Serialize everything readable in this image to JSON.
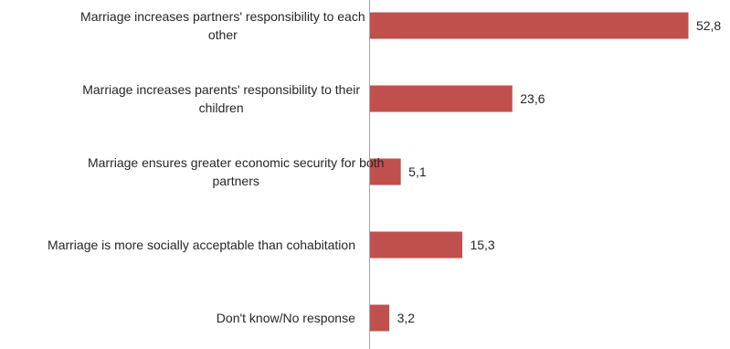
{
  "chart_data": {
    "type": "bar",
    "orientation": "horizontal",
    "categories": [
      "Marriage increases partners' responsibility to each other",
      "Marriage increases parents' responsibility to their children",
      "Marriage ensures greater economic security for both partners",
      "Marriage is more socially acceptable than cohabitation",
      "Don't know/No response"
    ],
    "category_label_lines": [
      [
        "Marriage increases partners' responsibility to each",
        "other"
      ],
      [
        "Marriage increases parents' responsibility to their",
        "children"
      ],
      [
        "Marriage ensures greater economic security for both",
        "partners"
      ],
      [
        "Marriage is more socially acceptable than cohabitation"
      ],
      [
        "Don't know/No response"
      ]
    ],
    "values": [
      52.8,
      23.6,
      5.1,
      15.3,
      3.2
    ],
    "value_labels": [
      "52,8",
      "23,6",
      "5,1",
      "15,3",
      "3,2"
    ],
    "bar_color": "#c0504d",
    "xlim": [
      0,
      60
    ],
    "title": "",
    "xlabel": "",
    "ylabel": "",
    "grid": false,
    "legend": "none"
  }
}
